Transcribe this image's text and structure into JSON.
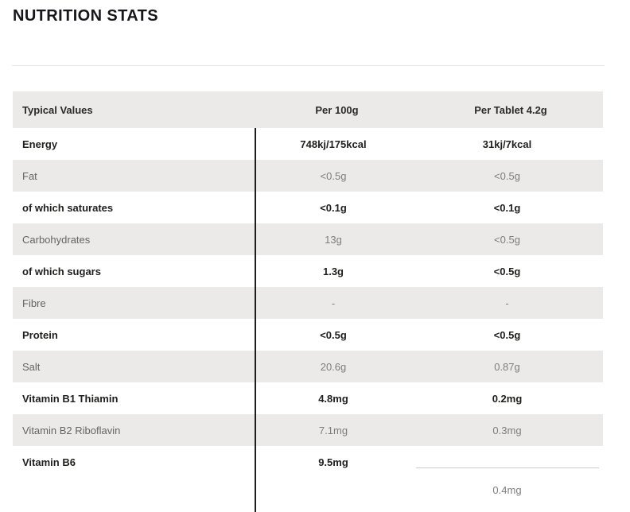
{
  "page": {
    "title": "NUTRITION STATS"
  },
  "colors": {
    "stripe_bg": "#ebeae8",
    "dark_text": "#1e1e1c",
    "muted_text": "#7d7d7b",
    "title_divider": "#e7e7e5",
    "column_rule": "#1d1d1b",
    "overflow_rule": "#cbcbc9"
  },
  "table": {
    "headers": [
      "Typical Values",
      "Per 100g",
      "Per Tablet 4.2g"
    ],
    "rows": [
      {
        "label": "Energy",
        "per_100g": "748kj/175kcal",
        "per_tablet": "31kj/7kcal",
        "emphasis": true
      },
      {
        "label": "Fat",
        "per_100g": "<0.5g",
        "per_tablet": "<0.5g",
        "emphasis": false
      },
      {
        "label": "of which saturates",
        "per_100g": "<0.1g",
        "per_tablet": "<0.1g",
        "emphasis": true
      },
      {
        "label": "Carbohydrates",
        "per_100g": "13g",
        "per_tablet": "<0.5g",
        "emphasis": false
      },
      {
        "label": "of which sugars",
        "per_100g": "1.3g",
        "per_tablet": "<0.5g",
        "emphasis": true
      },
      {
        "label": "Fibre",
        "per_100g": "-",
        "per_tablet": "-",
        "emphasis": false
      },
      {
        "label": "Protein",
        "per_100g": "<0.5g",
        "per_tablet": "<0.5g",
        "emphasis": true
      },
      {
        "label": "Salt",
        "per_100g": "20.6g",
        "per_tablet": "0.87g",
        "emphasis": false
      },
      {
        "label": "Vitamin B1 Thiamin",
        "per_100g": "4.8mg",
        "per_tablet": "0.2mg",
        "emphasis": true
      },
      {
        "label": "Vitamin B2 Riboflavin",
        "per_100g": "7.1mg",
        "per_tablet": "0.3mg",
        "emphasis": false
      },
      {
        "label": "Vitamin B6",
        "per_100g": "9.5mg",
        "per_tablet": "",
        "emphasis": true
      }
    ],
    "overflow_value": "0.4mg"
  }
}
